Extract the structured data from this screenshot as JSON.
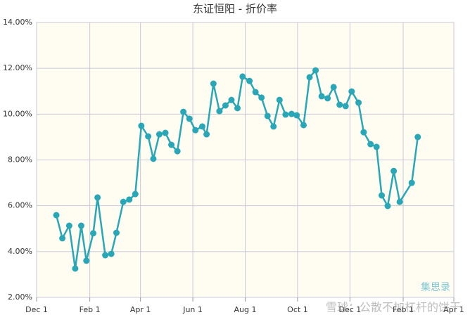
{
  "chart_data": {
    "type": "line",
    "title": "东证恒阳 - 折价率",
    "annotations": [
      "集思录",
      "雪球：公散不加杠杆的饼干"
    ],
    "xlim": [
      0,
      486
    ],
    "xticks": [
      {
        "value": 0,
        "label": "Dec 1"
      },
      {
        "value": 62,
        "label": "Feb 1"
      },
      {
        "value": 121,
        "label": "Apr 1"
      },
      {
        "value": 182,
        "label": "Jun 1"
      },
      {
        "value": 243,
        "label": "Aug 1"
      },
      {
        "value": 304,
        "label": "Oct 1"
      },
      {
        "value": 365,
        "label": "Dec 1"
      },
      {
        "value": 427,
        "label": "Feb 1"
      },
      {
        "value": 486,
        "label": "Apr 1"
      }
    ],
    "ylim": [
      2,
      14
    ],
    "yticks": [
      {
        "value": 2,
        "label": "2.00%"
      },
      {
        "value": 4,
        "label": "4.00%"
      },
      {
        "value": 6,
        "label": "6.00%"
      },
      {
        "value": 8,
        "label": "8.00%"
      },
      {
        "value": 10,
        "label": "10.00%"
      },
      {
        "value": 12,
        "label": "12.00%"
      },
      {
        "value": 14,
        "label": "14.00%"
      }
    ],
    "grid": true,
    "x": [
      23,
      30,
      38,
      45,
      52,
      58,
      66,
      71,
      80,
      87,
      93,
      101,
      108,
      115,
      122,
      130,
      136,
      143,
      150,
      157,
      164,
      171,
      178,
      185,
      193,
      198,
      206,
      213,
      220,
      227,
      234,
      240,
      248,
      255,
      262,
      269,
      276,
      283,
      290,
      297,
      303,
      311,
      318,
      325,
      332,
      339,
      346,
      353,
      360,
      367,
      375,
      381,
      389,
      396,
      402,
      409,
      416,
      423,
      437,
      444
    ],
    "series": [
      {
        "color": "#2aa7b6",
        "values": [
          5.59,
          4.58,
          5.13,
          3.26,
          5.13,
          3.6,
          4.8,
          6.36,
          3.84,
          3.9,
          4.82,
          6.17,
          6.27,
          6.51,
          9.49,
          9.03,
          8.05,
          9.12,
          9.18,
          8.66,
          8.38,
          10.1,
          9.8,
          9.3,
          9.46,
          9.12,
          11.33,
          10.13,
          10.38,
          10.62,
          10.26,
          11.64,
          11.45,
          10.96,
          10.72,
          9.92,
          9.46,
          10.62,
          9.98,
          10.01,
          9.95,
          9.52,
          11.61,
          11.91,
          10.78,
          10.69,
          11.18,
          10.41,
          10.35,
          10.99,
          10.5,
          9.21,
          8.69,
          8.57,
          6.45,
          5.99,
          7.52,
          6.17,
          7.0,
          9.0
        ]
      }
    ]
  }
}
